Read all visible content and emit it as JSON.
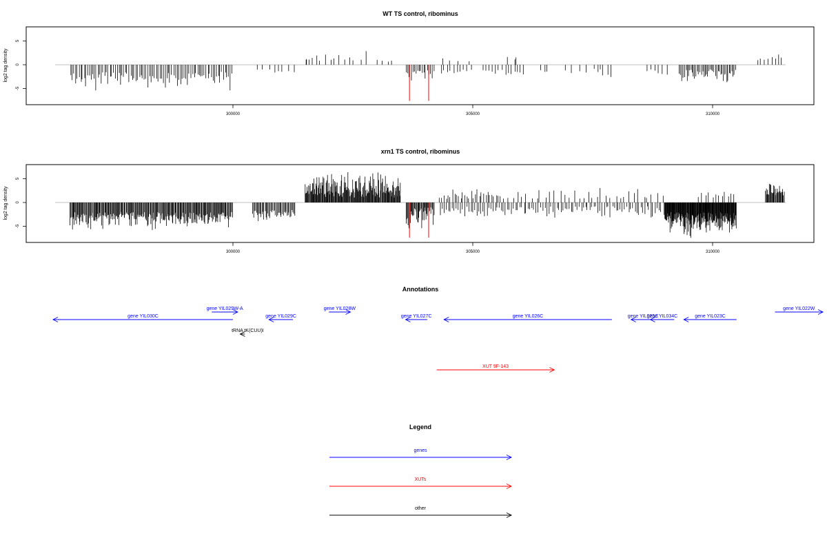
{
  "chart_data": [
    {
      "type": "bar",
      "title": "WT TS control, ribominus",
      "ylabel": "log2 tag density",
      "xlim": [
        296000,
        312000
      ],
      "ylim": [
        -8,
        8
      ],
      "yticks": [
        -5,
        0,
        5
      ],
      "xticks": [
        300000,
        305000,
        310000
      ],
      "grid": false,
      "highlight_color": "#ff0000",
      "bar_color": "#000000",
      "series": [
        {
          "segments": [
            {
              "start": 296600,
              "end": 300000,
              "sign": -1,
              "density": 95,
              "min": 1.5,
              "max": 5.5
            },
            {
              "start": 300500,
              "end": 301300,
              "sign": -1,
              "density": 8,
              "min": 1,
              "max": 2.2
            },
            {
              "start": 301500,
              "end": 301600,
              "sign": 1,
              "density": 3,
              "min": 1,
              "max": 2
            },
            {
              "start": 301600,
              "end": 302800,
              "sign": 1,
              "density": 12,
              "min": 0.8,
              "max": 3.3
            },
            {
              "start": 303000,
              "end": 303400,
              "sign": 1,
              "density": 4,
              "min": 0.6,
              "max": 1.5
            },
            {
              "start": 303600,
              "end": 304200,
              "sign": -1,
              "density": 18,
              "min": 1,
              "max": 3.5
            },
            {
              "start": 304300,
              "end": 305000,
              "sign": -1,
              "density": 10,
              "min": 1,
              "max": 2.5
            },
            {
              "start": 304300,
              "end": 305000,
              "sign": 1,
              "density": 4,
              "min": 0.6,
              "max": 1.5
            },
            {
              "start": 305200,
              "end": 306100,
              "sign": -1,
              "density": 14,
              "min": 1,
              "max": 2.5
            },
            {
              "start": 305700,
              "end": 306000,
              "sign": 1,
              "density": 3,
              "min": 1,
              "max": 2
            },
            {
              "start": 306400,
              "end": 306600,
              "sign": -1,
              "density": 3,
              "min": 1,
              "max": 2
            },
            {
              "start": 306900,
              "end": 307400,
              "sign": -1,
              "density": 4,
              "min": 1,
              "max": 2.2
            },
            {
              "start": 307500,
              "end": 307900,
              "sign": -1,
              "density": 6,
              "min": 0.8,
              "max": 3.3
            },
            {
              "start": 308600,
              "end": 309100,
              "sign": -1,
              "density": 6,
              "min": 1,
              "max": 2.5
            },
            {
              "start": 309300,
              "end": 310500,
              "sign": -1,
              "density": 45,
              "min": 1,
              "max": 4
            },
            {
              "start": 310900,
              "end": 311500,
              "sign": 1,
              "density": 8,
              "min": 0.8,
              "max": 2.4
            }
          ]
        }
      ],
      "highlights": [
        {
          "x": 303680,
          "value": -7.6
        },
        {
          "x": 304080,
          "value": -7.6
        }
      ]
    },
    {
      "type": "bar",
      "title": "xrn1 TS control, ribominus",
      "ylabel": "log2 tag density",
      "xlim": [
        296000,
        312000
      ],
      "ylim": [
        -8,
        8
      ],
      "yticks": [
        -5,
        0,
        5
      ],
      "xticks": [
        300000,
        305000,
        310000
      ],
      "grid": false,
      "highlight_color": "#ff0000",
      "bar_color": "#000000",
      "series": [
        {
          "segments": [
            {
              "start": 296600,
              "end": 300000,
              "sign": -1,
              "density": 230,
              "min": 2,
              "max": 6
            },
            {
              "start": 300400,
              "end": 301300,
              "sign": -1,
              "density": 45,
              "min": 1.5,
              "max": 4.5
            },
            {
              "start": 301500,
              "end": 303500,
              "sign": 1,
              "density": 170,
              "min": 1,
              "max": 7.2
            },
            {
              "start": 303600,
              "end": 304200,
              "sign": -1,
              "density": 40,
              "min": 1,
              "max": 6.5
            },
            {
              "start": 304300,
              "end": 305600,
              "sign": 1,
              "density": 30,
              "min": 0.8,
              "max": 3
            },
            {
              "start": 304300,
              "end": 309000,
              "sign": -1,
              "density": 110,
              "min": 0.8,
              "max": 3.5
            },
            {
              "start": 305600,
              "end": 309000,
              "sign": 1,
              "density": 35,
              "min": 0.8,
              "max": 3.3
            },
            {
              "start": 309000,
              "end": 310500,
              "sign": -1,
              "density": 180,
              "min": 2,
              "max": 7.5
            },
            {
              "start": 309700,
              "end": 310500,
              "sign": 1,
              "density": 12,
              "min": 0.8,
              "max": 3.5
            },
            {
              "start": 311100,
              "end": 311500,
              "sign": 1,
              "density": 30,
              "min": 1.5,
              "max": 4.2
            }
          ]
        }
      ],
      "highlights": [
        {
          "x": 303680,
          "value": -7.4
        },
        {
          "x": 304080,
          "value": -7.4
        }
      ]
    }
  ],
  "annotations": {
    "title": "Annotations",
    "items": [
      {
        "label": "gene YIL030C",
        "color": "#0000ff",
        "start": 300000,
        "end": 296250,
        "row": 1
      },
      {
        "label": "gene YIL029W-A",
        "color": "#0000ff",
        "start": 299560,
        "end": 300100,
        "row": 0
      },
      {
        "label": "gene YIL029C",
        "color": "#0000ff",
        "start": 301250,
        "end": 300750,
        "row": 1
      },
      {
        "label": "gene YIL028W",
        "color": "#0000ff",
        "start": 302000,
        "end": 302450,
        "row": 0
      },
      {
        "label": "gene YIL027C",
        "color": "#0000ff",
        "start": 304050,
        "end": 303600,
        "row": 1
      },
      {
        "label": "gene YIL026C",
        "color": "#0000ff",
        "start": 307900,
        "end": 304400,
        "row": 1
      },
      {
        "label": "gene YIL025C",
        "color": "#0000ff",
        "start": 308800,
        "end": 308300,
        "row": 1
      },
      {
        "label": "gene YIL034C",
        "color": "#0000ff",
        "start": 309200,
        "end": 308700,
        "row": 1
      },
      {
        "label": "gene YIL023C",
        "color": "#0000ff",
        "start": 310500,
        "end": 309400,
        "row": 1
      },
      {
        "label": "gene YIL022W",
        "color": "#0000ff",
        "start": 311300,
        "end": 312300,
        "row": 0
      },
      {
        "label": "tRNA tK(CUU)I",
        "color": "#000000",
        "start": 300250,
        "end": 300150,
        "row": 2
      },
      {
        "label": "XUT 9F-143",
        "color": "#ff0000",
        "start": 304250,
        "end": 306700,
        "row": 3
      }
    ]
  },
  "legend": {
    "title": "Legend",
    "items": [
      {
        "label": "genes",
        "color": "#0000ff"
      },
      {
        "label": "XUTs",
        "color": "#ff0000"
      },
      {
        "label": "other",
        "color": "#000000"
      }
    ]
  }
}
